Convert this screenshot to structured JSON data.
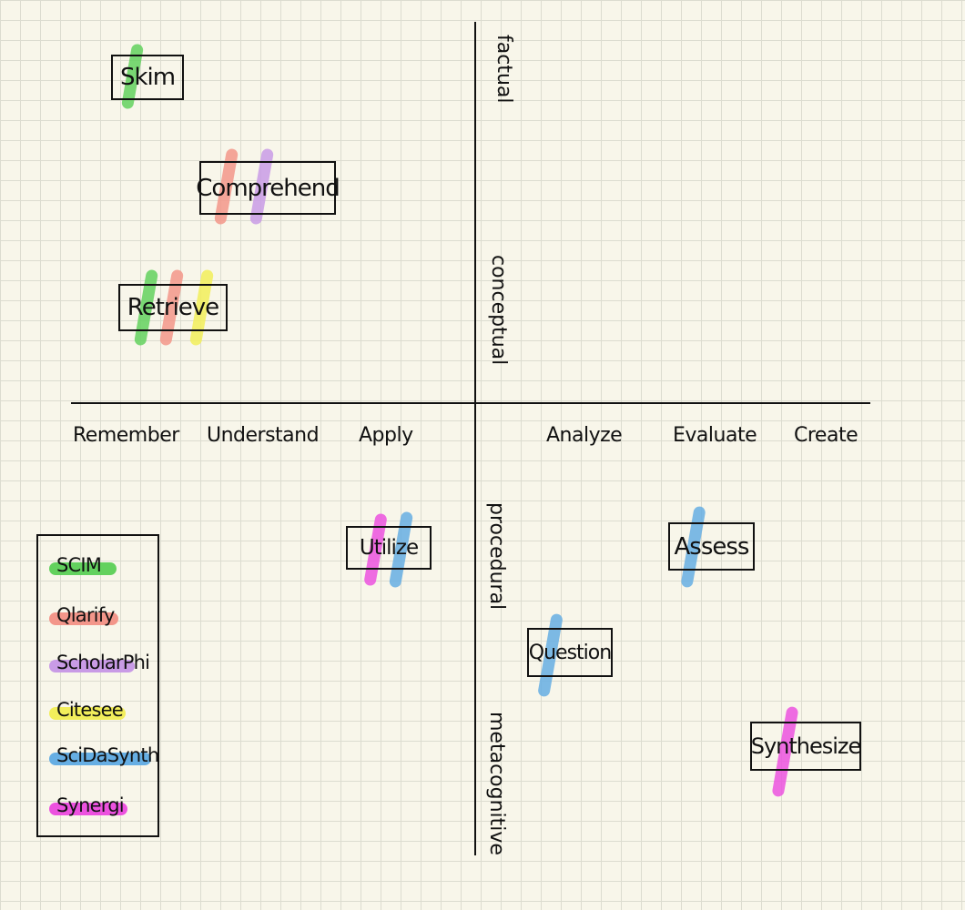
{
  "bloom_levels": [
    "Remember",
    "Understand",
    "Apply",
    "Analyze",
    "Evaluate",
    "Create"
  ],
  "knowledge_dimensions": [
    "factual",
    "conceptual",
    "procedural",
    "metacognitive"
  ],
  "activities": {
    "skim": "Skim",
    "comprehend": "Comprehend",
    "retrieve": "Retrieve",
    "utilize": "Utilize",
    "assess": "Assess",
    "question": "Question",
    "synthesize": "Synthesize"
  },
  "legend": [
    {
      "label": "SCIM",
      "color": "#63d15e"
    },
    {
      "label": "Qlarify",
      "color": "#f3968a"
    },
    {
      "label": "ScholarPhi",
      "color": "#c99be6"
    },
    {
      "label": "Citesee",
      "color": "#f2ee5b"
    },
    {
      "label": "SciDaSynth",
      "color": "#66aee3"
    },
    {
      "label": "Synergi",
      "color": "#ec52df"
    }
  ],
  "colors": {
    "background": "#f8f6ea",
    "grid": "#dcdcd0",
    "ink": "#111111"
  }
}
